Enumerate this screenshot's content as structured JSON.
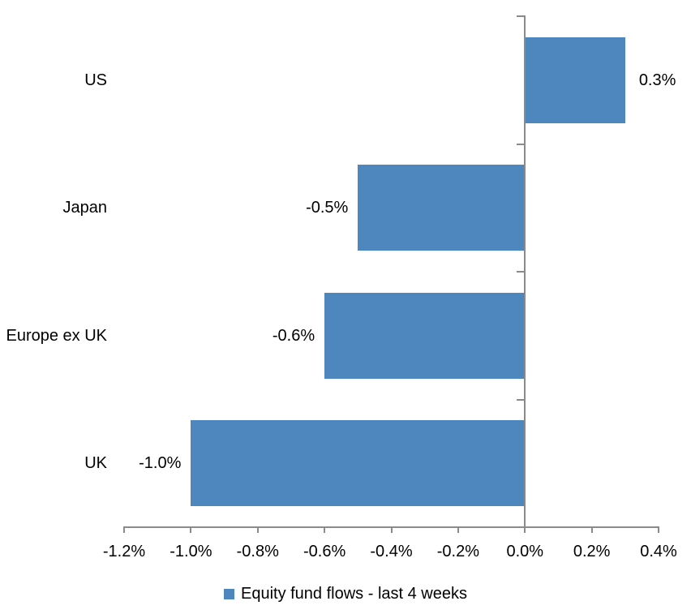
{
  "chart_data": {
    "type": "bar",
    "orientation": "horizontal",
    "title": "",
    "xlabel": "",
    "ylabel": "",
    "categories": [
      "US",
      "Japan",
      "Europe ex UK",
      "UK"
    ],
    "values": [
      0.3,
      -0.5,
      -0.6,
      -1.0
    ],
    "data_labels": [
      "0.3%",
      "-0.5%",
      "-0.6%",
      "-1.0%"
    ],
    "series_name": "Equity fund flows - last 4 weeks",
    "xlim": [
      -1.2,
      0.4
    ],
    "x_tick_values": [
      -1.2,
      -1.0,
      -0.8,
      -0.6,
      -0.4,
      -0.2,
      0.0,
      0.2,
      0.4
    ],
    "x_ticks": [
      "-1.2%",
      "-1.0%",
      "-0.8%",
      "-0.6%",
      "-0.4%",
      "-0.2%",
      "0.0%",
      "0.2%",
      "0.4%"
    ],
    "grid": false,
    "legend_position": "bottom",
    "bar_color": "#4E87BD",
    "axis_color": "#8A8A8A",
    "text_color": "#000000"
  }
}
